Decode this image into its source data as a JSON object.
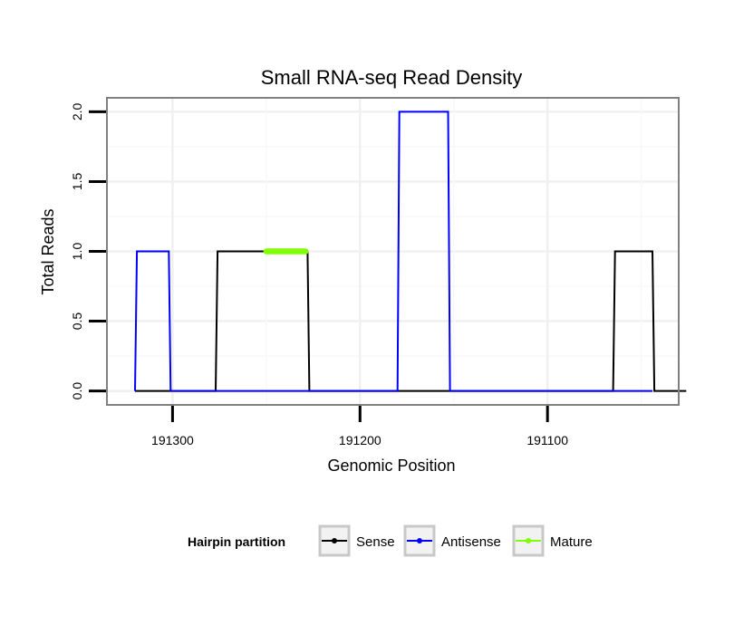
{
  "chart_data": {
    "type": "line",
    "title": "Small RNA-seq Read Density",
    "xlabel": "Genomic Position",
    "ylabel": "Total Reads",
    "x_reversed": true,
    "xlim": [
      191335,
      191030
    ],
    "ylim": [
      -0.1,
      2.1
    ],
    "x_ticks": [
      191300,
      191200,
      191100
    ],
    "x_tick_labels": [
      "191300",
      "191200",
      191100
    ],
    "y_ticks": [
      0,
      0.5,
      1,
      1.5,
      2
    ],
    "y_tick_labels": [
      "0.0",
      "0.5",
      "1.0",
      "1.5",
      "2.0"
    ],
    "grid": true,
    "legend": {
      "title": "Hairpin partition",
      "position": "bottom",
      "entries": [
        {
          "name": "Sense",
          "color": "#000000"
        },
        {
          "name": "Antisense",
          "color": "#0000ff"
        },
        {
          "name": "Mature",
          "color": "#7fff00"
        }
      ]
    },
    "series": [
      {
        "name": "Sense",
        "color": "#000000",
        "points": [
          [
            191320,
            0
          ],
          [
            191277,
            0
          ],
          [
            191276,
            1
          ],
          [
            191228,
            1
          ],
          [
            191227,
            0
          ],
          [
            191065,
            0
          ],
          [
            191064,
            1
          ],
          [
            191044,
            1
          ],
          [
            191043,
            0
          ],
          [
            191026,
            0
          ]
        ]
      },
      {
        "name": "Antisense",
        "color": "#0000ff",
        "points": [
          [
            191320,
            0
          ],
          [
            191319,
            1
          ],
          [
            191302,
            1
          ],
          [
            191301,
            0
          ],
          [
            191180,
            0
          ],
          [
            191179,
            2
          ],
          [
            191153,
            2
          ],
          [
            191152,
            0
          ],
          [
            191064,
            0
          ],
          [
            191044,
            0
          ]
        ]
      },
      {
        "name": "Mature",
        "color": "#7fff00",
        "points": [
          [
            191250,
            1
          ],
          [
            191229,
            1
          ]
        ]
      }
    ]
  }
}
